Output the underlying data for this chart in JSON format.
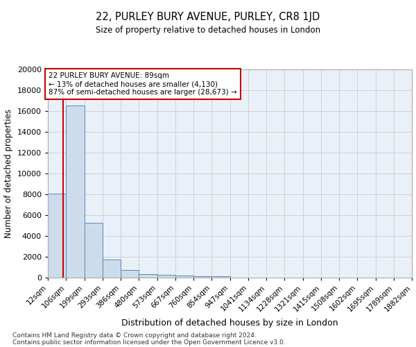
{
  "title1": "22, PURLEY BURY AVENUE, PURLEY, CR8 1JD",
  "title2": "Size of property relative to detached houses in London",
  "xlabel": "Distribution of detached houses by size in London",
  "ylabel": "Number of detached properties",
  "bin_labels": [
    "12sqm",
    "106sqm",
    "199sqm",
    "293sqm",
    "386sqm",
    "480sqm",
    "573sqm",
    "667sqm",
    "760sqm",
    "854sqm",
    "947sqm",
    "1041sqm",
    "1134sqm",
    "1228sqm",
    "1321sqm",
    "1415sqm",
    "1508sqm",
    "1602sqm",
    "1695sqm",
    "1789sqm",
    "1882sqm"
  ],
  "bin_edges": [
    12,
    106,
    199,
    293,
    386,
    480,
    573,
    667,
    760,
    854,
    947,
    1041,
    1134,
    1228,
    1321,
    1415,
    1508,
    1602,
    1695,
    1789,
    1882
  ],
  "bar_heights": [
    8100,
    16500,
    5300,
    1750,
    750,
    320,
    240,
    190,
    160,
    150,
    0,
    0,
    0,
    0,
    0,
    0,
    0,
    0,
    0,
    0
  ],
  "bar_color": "#ccdcec",
  "bar_edge_color": "#5588bb",
  "grid_color": "#cccccc",
  "bg_color": "#eaf0f8",
  "property_size": 89,
  "red_line_color": "#cc0000",
  "annotation_line1": "22 PURLEY BURY AVENUE: 89sqm",
  "annotation_line2": "← 13% of detached houses are smaller (4,130)",
  "annotation_line3": "87% of semi-detached houses are larger (28,673) →",
  "annotation_box_color": "#cc0000",
  "ylim": [
    0,
    20000
  ],
  "yticks": [
    0,
    2000,
    4000,
    6000,
    8000,
    10000,
    12000,
    14000,
    16000,
    18000,
    20000
  ],
  "footnote1": "Contains HM Land Registry data © Crown copyright and database right 2024.",
  "footnote2": "Contains public sector information licensed under the Open Government Licence v3.0."
}
